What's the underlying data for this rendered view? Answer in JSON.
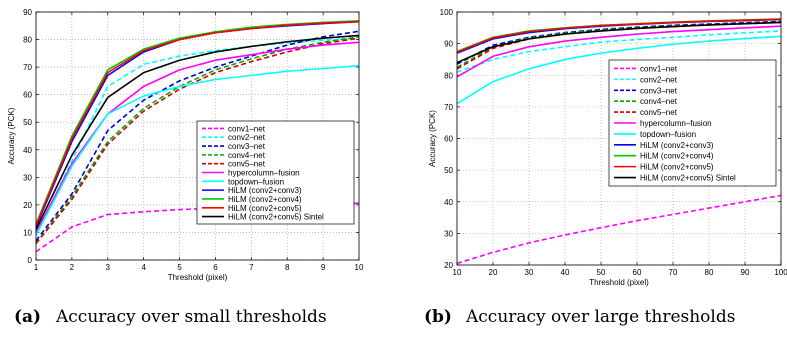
{
  "captions": [
    {
      "label": "(a)",
      "text": "Accuracy over small thresholds"
    },
    {
      "label": "(b)",
      "text": "Accuracy over large thresholds"
    }
  ],
  "chart_data": [
    {
      "type": "line",
      "xlabel": "Threshold (pixel)",
      "ylabel": "Accuracy (PCK)",
      "xlim": [
        1,
        10
      ],
      "ylim": [
        0,
        90
      ],
      "xticks": [
        1,
        2,
        3,
        4,
        5,
        6,
        7,
        8,
        9,
        10
      ],
      "yticks": [
        0,
        10,
        20,
        30,
        40,
        50,
        60,
        70,
        80,
        90
      ],
      "grid": true,
      "legend_position": "bottom-right",
      "x": [
        1,
        2,
        3,
        4,
        5,
        6,
        7,
        8,
        9,
        10
      ],
      "series": [
        {
          "name": "conv1–net",
          "color": "#ff00ff",
          "dash": "dashed",
          "values": [
            3,
            12,
            16.5,
            17.5,
            18.3,
            18.8,
            19.2,
            19.6,
            20.0,
            20.6
          ]
        },
        {
          "name": "conv2–net",
          "color": "#00ffff",
          "dash": "dashed",
          "values": [
            9,
            36,
            63,
            71,
            74,
            76,
            77.5,
            78.8,
            79.8,
            80.5
          ]
        },
        {
          "name": "conv3–net",
          "color": "#0000cc",
          "dash": "dashed",
          "values": [
            7,
            24,
            47,
            58,
            65,
            70,
            74,
            78,
            81,
            83
          ]
        },
        {
          "name": "conv4–net",
          "color": "#00aa00",
          "dash": "dashed",
          "values": [
            6,
            23,
            43,
            55,
            63,
            69,
            73,
            76.5,
            79,
            81
          ]
        },
        {
          "name": "conv5–net",
          "color": "#cc0000",
          "dash": "dashed",
          "values": [
            6,
            22,
            42,
            54,
            62,
            68,
            72,
            75.5,
            78.5,
            80.5
          ]
        },
        {
          "name": "hypercolumn–fusion",
          "color": "#ff00ff",
          "dash": "solid",
          "values": [
            10,
            35,
            53,
            63,
            69,
            72.5,
            74.5,
            76.5,
            78,
            79
          ]
        },
        {
          "name": "topdown–fusion",
          "color": "#00ffff",
          "dash": "solid",
          "values": [
            9,
            34,
            53,
            59.5,
            63,
            65.5,
            67,
            68.5,
            69.5,
            70.5
          ]
        },
        {
          "name": "HiLM (conv2+conv3)",
          "color": "#0000ff",
          "dash": "solid",
          "values": [
            12,
            43,
            67,
            75.5,
            80,
            82.5,
            84,
            85,
            85.8,
            86.5
          ]
        },
        {
          "name": "HiLM (conv2+conv4)",
          "color": "#00cc00",
          "dash": "solid",
          "values": [
            13,
            45,
            69,
            76.5,
            80.5,
            82.8,
            84.5,
            85.5,
            86.2,
            86.8
          ]
        },
        {
          "name": "HiLM (conv2+conv5)",
          "color": "#ff0000",
          "dash": "solid",
          "values": [
            12.5,
            44,
            68,
            76,
            80,
            82.5,
            84,
            85.2,
            86,
            86.5
          ]
        },
        {
          "name": "HiLM (conv2+conv5) Sintel",
          "color": "#000000",
          "dash": "solid",
          "values": [
            11,
            38,
            59,
            68,
            72.5,
            75.5,
            77.5,
            79.2,
            80.5,
            81.5
          ]
        }
      ]
    },
    {
      "type": "line",
      "xlabel": "Threshold (pixel)",
      "ylabel": "Accuracy (PCK)",
      "xlim": [
        10,
        100
      ],
      "ylim": [
        20,
        100
      ],
      "xticks": [
        10,
        20,
        30,
        40,
        50,
        60,
        70,
        80,
        90,
        100
      ],
      "yticks": [
        20,
        30,
        40,
        50,
        60,
        70,
        80,
        90,
        100
      ],
      "grid": true,
      "legend_position": "center-right",
      "x": [
        10,
        20,
        30,
        40,
        50,
        60,
        70,
        80,
        90,
        100
      ],
      "series": [
        {
          "name": "conv1–net",
          "color": "#ff00ff",
          "dash": "dashed",
          "values": [
            20.5,
            24,
            27,
            29.5,
            31.8,
            34,
            36,
            38,
            40,
            42
          ]
        },
        {
          "name": "conv2–net",
          "color": "#00ffff",
          "dash": "dashed",
          "values": [
            81,
            85,
            87.5,
            89,
            90.5,
            91.3,
            92,
            92.8,
            93.4,
            94
          ]
        },
        {
          "name": "conv3–net",
          "color": "#0000cc",
          "dash": "dashed",
          "values": [
            83.5,
            89.5,
            92,
            93.5,
            94.5,
            95.2,
            95.8,
            96.2,
            96.6,
            97
          ]
        },
        {
          "name": "conv4–net",
          "color": "#00aa00",
          "dash": "dashed",
          "values": [
            82.5,
            89,
            91.8,
            93.3,
            94.3,
            95,
            95.6,
            96,
            96.4,
            96.8
          ]
        },
        {
          "name": "conv5–net",
          "color": "#cc0000",
          "dash": "dashed",
          "values": [
            82,
            88.5,
            91.5,
            93,
            94,
            94.8,
            95.4,
            95.9,
            96.3,
            96.7
          ]
        },
        {
          "name": "hypercolumn–fusion",
          "color": "#ff00ff",
          "dash": "solid",
          "values": [
            79.5,
            86,
            89,
            90.8,
            92,
            93,
            93.8,
            94.4,
            95,
            95.5
          ]
        },
        {
          "name": "topdown–fusion",
          "color": "#00ffff",
          "dash": "solid",
          "values": [
            71,
            78,
            82,
            85,
            87,
            88.5,
            89.8,
            90.8,
            91.6,
            92.3
          ]
        },
        {
          "name": "HiLM (conv2+conv3)",
          "color": "#0000ff",
          "dash": "solid",
          "values": [
            87,
            91.5,
            93.5,
            94.7,
            95.5,
            96.1,
            96.6,
            97,
            97.3,
            97.6
          ]
        },
        {
          "name": "HiLM (conv2+conv4)",
          "color": "#00cc00",
          "dash": "solid",
          "values": [
            87.5,
            92,
            94,
            95,
            95.8,
            96.3,
            96.8,
            97.2,
            97.5,
            97.8
          ]
        },
        {
          "name": "HiLM (conv2+conv5)",
          "color": "#ff0000",
          "dash": "solid",
          "values": [
            87.3,
            91.8,
            93.8,
            94.9,
            95.7,
            96.2,
            96.7,
            97.1,
            97.4,
            97.7
          ]
        },
        {
          "name": "HiLM (conv2+conv5) Sintel",
          "color": "#000000",
          "dash": "solid",
          "values": [
            84,
            89,
            91.5,
            93,
            94,
            94.8,
            95.4,
            95.9,
            96.3,
            96.7
          ]
        }
      ]
    }
  ]
}
